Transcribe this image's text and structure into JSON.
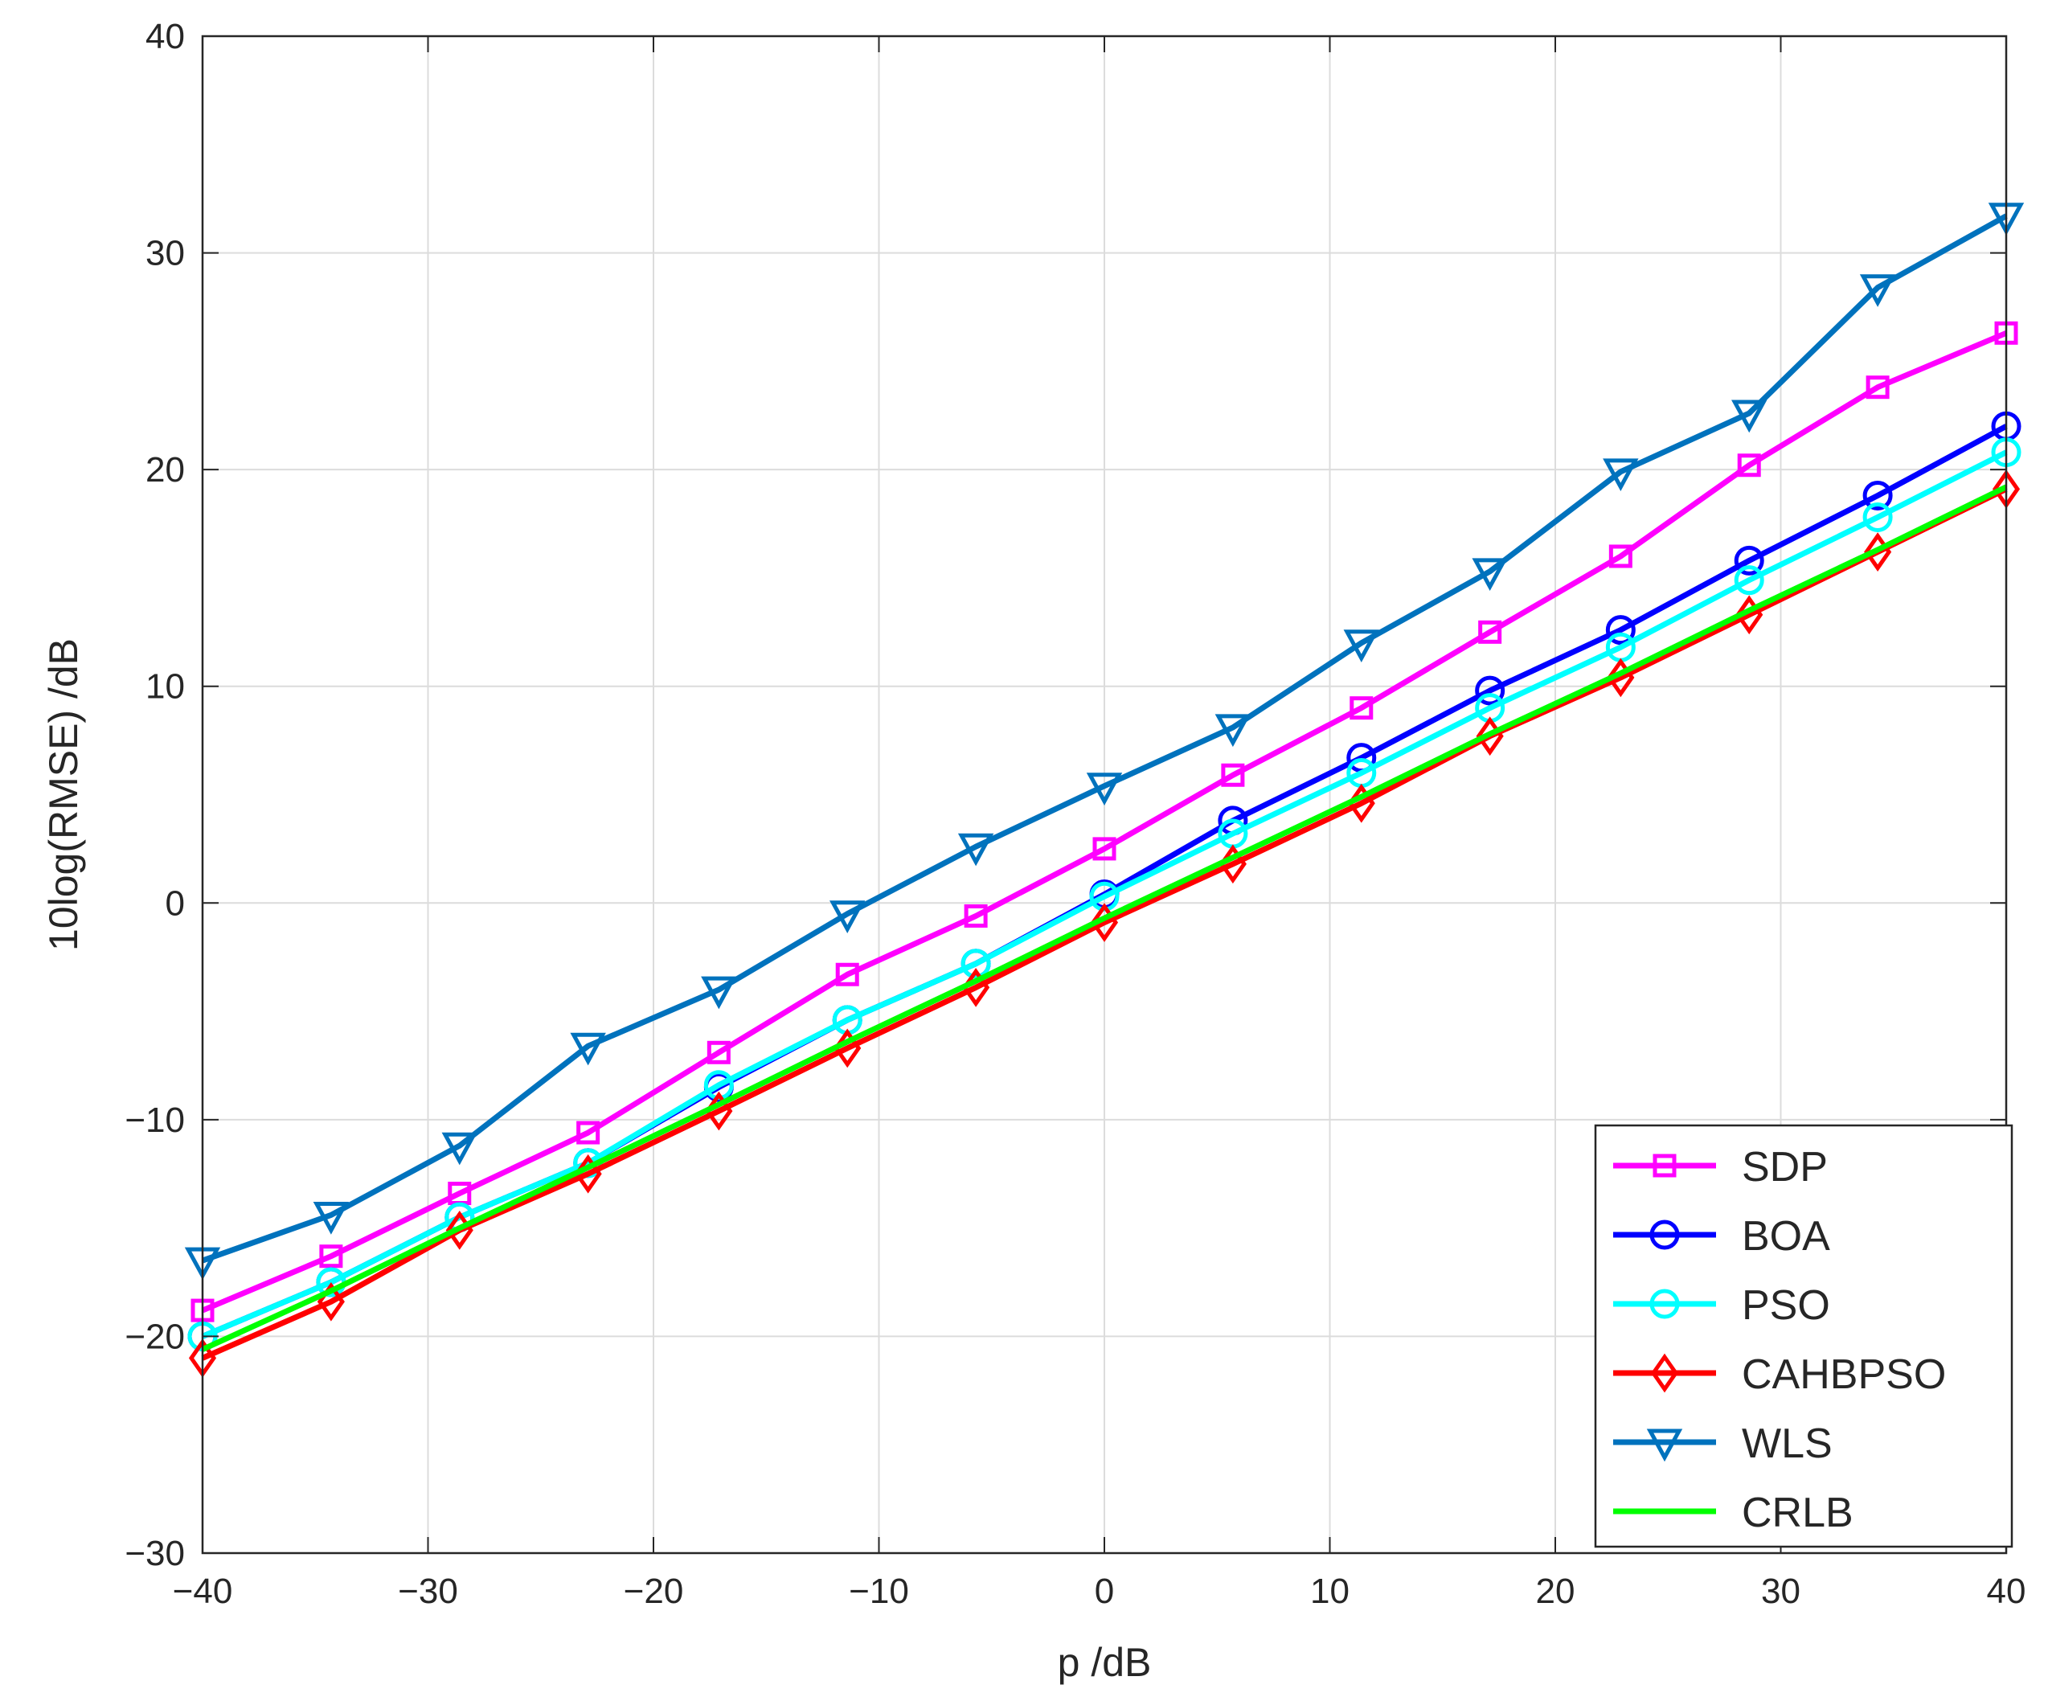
{
  "chart_data": {
    "type": "line",
    "xlabel": "p /dB",
    "ylabel": "10log(RMSE) /dB",
    "xlim": [
      -40,
      40
    ],
    "ylim": [
      -30,
      40
    ],
    "xticks": [
      -40,
      -30,
      -20,
      -10,
      0,
      10,
      20,
      30,
      40
    ],
    "yticks": [
      -30,
      -20,
      -10,
      0,
      10,
      20,
      30,
      40
    ],
    "xtick_labels": [
      "−40",
      "−30",
      "−20",
      "−10",
      "0",
      "10",
      "20",
      "30",
      "40"
    ],
    "ytick_labels": [
      "−30",
      "−20",
      "−10",
      "0",
      "10",
      "20",
      "30",
      "40"
    ],
    "grid": true,
    "legend_position": "bottom-right",
    "x": [
      -40,
      -34.3,
      -28.6,
      -22.9,
      -17.1,
      -11.4,
      -5.7,
      0,
      5.7,
      11.4,
      17.1,
      22.9,
      28.6,
      34.3,
      40
    ],
    "series": [
      {
        "name": "SDP",
        "color": "#ff00ff",
        "marker": "square",
        "values": [
          -18.8,
          -16.3,
          -13.4,
          -10.6,
          -6.9,
          -3.3,
          -0.6,
          2.5,
          5.9,
          9.0,
          12.5,
          16.0,
          20.2,
          23.8,
          26.3
        ]
      },
      {
        "name": "BOA",
        "color": "#0000ff",
        "marker": "circle",
        "values": [
          -20.0,
          -17.5,
          -14.5,
          -12.0,
          -8.5,
          -5.4,
          -2.8,
          0.4,
          3.8,
          6.7,
          9.8,
          12.6,
          15.8,
          18.8,
          22.0
        ]
      },
      {
        "name": "PSO",
        "color": "#00ffff",
        "marker": "circle",
        "values": [
          -20.0,
          -17.5,
          -14.5,
          -12.0,
          -8.4,
          -5.4,
          -2.8,
          0.3,
          3.2,
          6.0,
          9.0,
          11.8,
          14.9,
          17.8,
          20.8
        ]
      },
      {
        "name": "CAHBPSO",
        "color": "#ff0000",
        "marker": "diamond",
        "values": [
          -21.0,
          -18.4,
          -15.1,
          -12.5,
          -9.6,
          -6.7,
          -3.9,
          -0.9,
          1.8,
          4.6,
          7.7,
          10.4,
          13.3,
          16.2,
          19.1
        ]
      },
      {
        "name": "WLS",
        "color": "#0072bd",
        "marker": "triangle-down",
        "values": [
          -16.5,
          -14.4,
          -11.2,
          -6.6,
          -4.0,
          -0.5,
          2.6,
          5.4,
          8.1,
          12.0,
          15.3,
          19.9,
          22.6,
          28.4,
          31.7
        ]
      },
      {
        "name": "CRLB",
        "color": "#00ff00",
        "marker": "none",
        "values": [
          -20.6,
          -17.9,
          -15.0,
          -12.2,
          -9.3,
          -6.4,
          -3.6,
          -0.7,
          2.1,
          4.9,
          7.8,
          10.6,
          13.5,
          16.3,
          19.2
        ]
      }
    ]
  }
}
